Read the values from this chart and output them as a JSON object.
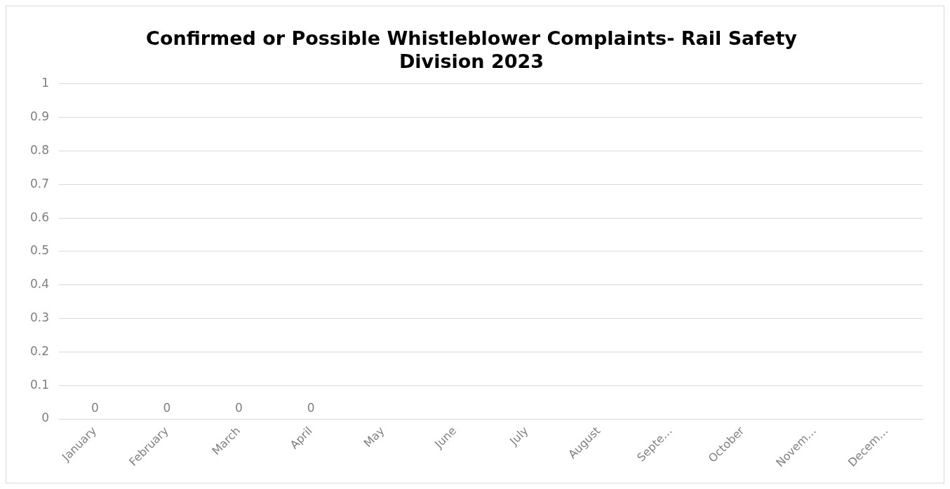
{
  "chart_data": {
    "type": "bar",
    "title": "Confirmed or Possible Whistleblower Complaints- Rail Safety Division 2023",
    "categories": [
      "January",
      "February",
      "March",
      "April",
      "May",
      "June",
      "July",
      "August",
      "Septe…",
      "October",
      "Novem…",
      "Decem…"
    ],
    "values": [
      0,
      0,
      0,
      0,
      null,
      null,
      null,
      null,
      null,
      null,
      null,
      null
    ],
    "ylim": [
      0,
      1
    ],
    "yticks": [
      0,
      0.1,
      0.2,
      0.3,
      0.4,
      0.5,
      0.6,
      0.7,
      0.8,
      0.9,
      1
    ],
    "grid": "y",
    "data_labels": true
  }
}
